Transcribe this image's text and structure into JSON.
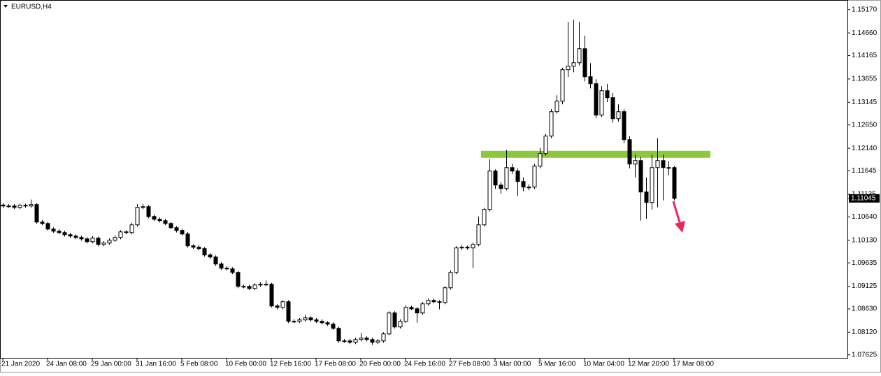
{
  "chart_data": {
    "type": "candlestick",
    "title": "EURUSD,H4",
    "open": [
      1.109,
      1.10878,
      1.10878,
      1.10848,
      1.10893,
      1.10878,
      1.10909,
      1.10527,
      1.10496,
      1.10374,
      1.10328,
      1.10298,
      1.10252,
      1.10221,
      1.10191,
      1.1016,
      1.10099,
      1.10176,
      1.10038,
      1.10069,
      1.1013,
      1.10191,
      1.10313,
      1.10298,
      1.10466,
      1.10848,
      1.10863,
      1.10649,
      1.10588,
      1.10557,
      1.10496,
      1.10405,
      1.10344,
      1.10267,
      1.10008,
      1.09977,
      1.09947,
      1.09809,
      1.09763,
      1.0961,
      1.09519,
      1.09504,
      1.09427,
      1.09122,
      1.09122,
      1.09076,
      1.09152,
      1.09168,
      1.09168,
      1.08694,
      1.08663,
      1.08786,
      1.08358,
      1.08358,
      1.08389,
      1.08434,
      1.08389,
      1.08358,
      1.08327,
      1.08297,
      1.08205,
      1.0793,
      1.0793,
      1.079,
      1.07961,
      1.07991,
      1.07961,
      1.079,
      1.0793,
      1.08083,
      1.08541,
      1.08236,
      1.08358,
      1.08663,
      1.08633,
      1.08541,
      1.0874,
      1.08816,
      1.08786,
      1.0877,
      1.09091,
      1.09427,
      1.09962,
      1.09977,
      1.09962,
      1.10038,
      1.10466,
      1.10802,
      1.11642,
      1.11336,
      1.1126,
      1.11718,
      1.11642,
      1.11413,
      1.11291,
      1.11291,
      1.11749,
      1.12024,
      1.12406,
      1.1294,
      1.13169,
      1.13857,
      1.13933,
      1.14009,
      1.14315,
      1.13704,
      1.13551,
      1.12864,
      1.13398,
      1.13246,
      1.12787,
      1.1294,
      1.12329,
      1.11795,
      1.11871,
      1.11184,
      1.10955,
      1.11718,
      1.11871,
      1.11718,
      1.11718
    ],
    "high": [
      1.1094,
      1.1092,
      1.1092,
      1.1093,
      1.1093,
      1.1102,
      1.1094,
      1.1057,
      1.1053,
      1.1041,
      1.1037,
      1.1034,
      1.1029,
      1.1026,
      1.1023,
      1.102,
      1.1022,
      1.1021,
      1.1011,
      1.1017,
      1.1023,
      1.1035,
      1.1035,
      1.1051,
      1.1092,
      1.1092,
      1.109,
      1.1069,
      1.1063,
      1.106,
      1.1053,
      1.1044,
      1.1038,
      1.1031,
      1.1004,
      1.1002,
      1.0998,
      1.0985,
      1.098,
      1.0965,
      1.0956,
      1.0954,
      1.0946,
      1.0916,
      1.0916,
      1.0919,
      1.0921,
      1.0925,
      1.092,
      1.0873,
      1.0882,
      1.0882,
      1.084,
      1.0843,
      1.085,
      1.0847,
      1.0843,
      1.084,
      1.0836,
      1.0834,
      1.0824,
      1.0797,
      1.0797,
      1.08,
      1.081,
      1.0803,
      1.08,
      1.0797,
      1.0812,
      1.0858,
      1.0858,
      1.084,
      1.0871,
      1.087,
      1.0867,
      1.0878,
      1.0886,
      1.0886,
      1.0882,
      1.0913,
      1.0947,
      1.1,
      1.1002,
      1.1001,
      1.1008,
      1.1065,
      1.1084,
      1.119,
      1.1168,
      1.114,
      1.121,
      1.118,
      1.117,
      1.115,
      1.1135,
      1.118,
      1.1215,
      1.1245,
      1.13,
      1.133,
      1.139,
      1.149,
      1.1495,
      1.149,
      1.146,
      1.14,
      1.1365,
      1.135,
      1.1355,
      1.1335,
      1.131,
      1.13,
      1.124,
      1.12,
      1.1195,
      1.115,
      1.12,
      1.1236,
      1.12,
      1.1185,
      1.1175
    ],
    "low": [
      1.1084,
      1.1084,
      1.1081,
      1.1081,
      1.1084,
      1.1084,
      1.1049,
      1.1046,
      1.1034,
      1.1029,
      1.1026,
      1.1021,
      1.1018,
      1.1015,
      1.1012,
      1.1006,
      1.1006,
      1.1,
      1.1,
      1.1003,
      1.1009,
      1.1015,
      1.1026,
      1.1026,
      1.1043,
      1.1081,
      1.1061,
      1.1055,
      1.1052,
      1.1046,
      1.1037,
      1.103,
      1.1023,
      1.0997,
      1.0994,
      1.0991,
      1.0977,
      1.0972,
      1.0957,
      1.0948,
      1.0947,
      1.0939,
      1.0908,
      1.0908,
      1.0904,
      1.0904,
      1.0911,
      1.0913,
      1.0866,
      1.0862,
      1.0862,
      1.0832,
      1.0832,
      1.0832,
      1.0835,
      1.0835,
      1.0832,
      1.0829,
      1.0826,
      1.0817,
      1.0789,
      1.0789,
      1.0786,
      1.0786,
      1.0792,
      1.0792,
      1.0784,
      1.0786,
      1.0789,
      1.0805,
      1.082,
      1.082,
      1.0832,
      1.086,
      1.0833,
      1.085,
      1.087,
      1.0875,
      1.0862,
      1.0873,
      1.0905,
      1.0939,
      1.0992,
      1.0992,
      1.0952,
      1.1,
      1.1043,
      1.1076,
      1.1125,
      1.1115,
      1.1122,
      1.1158,
      1.111,
      1.112,
      1.1122,
      1.1125,
      1.117,
      1.1198,
      1.1236,
      1.129,
      1.131,
      1.137,
      1.138,
      1.1395,
      1.136,
      1.1345,
      1.128,
      1.1282,
      1.1315,
      1.127,
      1.1272,
      1.1225,
      1.117,
      1.115,
      1.1056,
      1.106,
      1.108,
      1.1085,
      1.11,
      1.1155,
      1.11
    ],
    "close": [
      1.10878,
      1.10878,
      1.10848,
      1.10893,
      1.10878,
      1.10909,
      1.10527,
      1.10496,
      1.10374,
      1.10328,
      1.10298,
      1.10252,
      1.10221,
      1.10191,
      1.1016,
      1.10099,
      1.10176,
      1.10038,
      1.10069,
      1.1013,
      1.10191,
      1.10313,
      1.10298,
      1.10466,
      1.10848,
      1.10863,
      1.10649,
      1.10588,
      1.10557,
      1.10496,
      1.10405,
      1.10344,
      1.10267,
      1.10008,
      1.09977,
      1.09947,
      1.09809,
      1.09763,
      1.0961,
      1.09519,
      1.09504,
      1.09427,
      1.09122,
      1.09122,
      1.09076,
      1.09152,
      1.09168,
      1.09168,
      1.08694,
      1.08663,
      1.08786,
      1.08358,
      1.08358,
      1.08389,
      1.08434,
      1.08389,
      1.08358,
      1.08327,
      1.08297,
      1.08205,
      1.0793,
      1.0793,
      1.079,
      1.07961,
      1.07991,
      1.07961,
      1.079,
      1.0793,
      1.08083,
      1.08541,
      1.08236,
      1.08358,
      1.08663,
      1.08633,
      1.08541,
      1.0874,
      1.08816,
      1.08786,
      1.0877,
      1.09091,
      1.09427,
      1.09962,
      1.09977,
      1.09962,
      1.10038,
      1.10466,
      1.10802,
      1.11642,
      1.11336,
      1.1126,
      1.11718,
      1.11642,
      1.11413,
      1.11291,
      1.11291,
      1.11749,
      1.12024,
      1.12406,
      1.1294,
      1.13169,
      1.13857,
      1.13933,
      1.14009,
      1.14315,
      1.13704,
      1.13551,
      1.12864,
      1.13398,
      1.13246,
      1.12787,
      1.1294,
      1.12329,
      1.11795,
      1.11871,
      1.11184,
      1.10955,
      1.11718,
      1.11871,
      1.11718,
      1.11718,
      1.11045
    ],
    "up_color": "#ffffff",
    "down_color": "#000000",
    "outline_color": "#000000",
    "xlim": [
      -0.5,
      151
    ],
    "xticks": [
      {
        "value": 0,
        "label": "21 Jan 2020"
      },
      {
        "value": 8,
        "label": "24 Jan 08:00"
      },
      {
        "value": 16,
        "label": "29 Jan 00:00"
      },
      {
        "value": 24,
        "label": "31 Jan 16:00"
      },
      {
        "value": 32,
        "label": "5 Feb 08:00"
      },
      {
        "value": 40,
        "label": "10 Feb 00:00"
      },
      {
        "value": 48,
        "label": "12 Feb 16:00"
      },
      {
        "value": 56,
        "label": "17 Feb 08:00"
      },
      {
        "value": 64,
        "label": "20 Feb 00:00"
      },
      {
        "value": 72,
        "label": "24 Feb 16:00"
      },
      {
        "value": 80,
        "label": "27 Feb 08:00"
      },
      {
        "value": 88,
        "label": "3 Mar 00:00"
      },
      {
        "value": 96,
        "label": "5 Mar 16:00"
      },
      {
        "value": 104,
        "label": "10 Mar 04:00"
      },
      {
        "value": 112,
        "label": "12 Mar 20:00"
      },
      {
        "value": 120,
        "label": "17 Mar 08:00"
      }
    ],
    "ylim": [
      1.0756,
      1.1538
    ],
    "yticks": [
      {
        "value": 1.1517,
        "label": "1.15170"
      },
      {
        "value": 1.1466,
        "label": "1.14660"
      },
      1.14165,
      1.13655,
      1.13145,
      {
        "value": 1.1265,
        "label": "1.12650"
      },
      {
        "value": 1.1214,
        "label": "1.12140"
      },
      1.11645,
      1.11135,
      {
        "value": 1.1064,
        "label": "1.10640"
      },
      {
        "value": 1.1013,
        "label": "1.10130"
      },
      1.09635,
      1.09125,
      {
        "value": 1.0863,
        "label": "1.08630"
      },
      {
        "value": 1.0812,
        "label": "1.08120"
      },
      1.07625
    ],
    "last_price": 1.11045,
    "level_line": {
      "value": 1.12008,
      "color": "#8cc83c",
      "from": 85.5,
      "to": 126.5
    }
  }
}
